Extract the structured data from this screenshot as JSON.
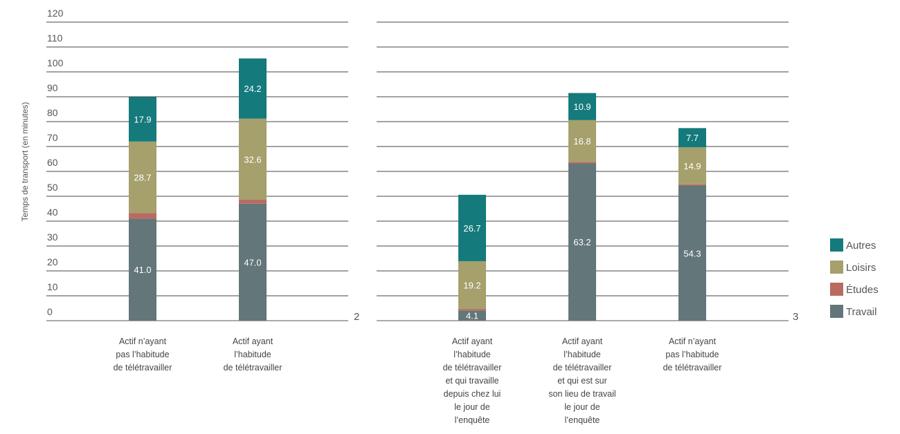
{
  "chart_data": {
    "type": "bar",
    "stacked": true,
    "ylabel": "Temps de transport (en minutes)",
    "ylim": [
      0,
      120
    ],
    "yticks": [
      "0",
      "10",
      "20",
      "30",
      "40",
      "50",
      "60",
      "70",
      "80",
      "90",
      "100",
      "110",
      "120"
    ],
    "grid": true,
    "legend_position": "right",
    "series": [
      {
        "name": "Travail",
        "color": "#637679"
      },
      {
        "name": "Études",
        "color": "#b96b61"
      },
      {
        "name": "Loisirs",
        "color": "#a5a06c"
      },
      {
        "name": "Autres",
        "color": "#157a7c"
      }
    ],
    "legend_order": [
      "Autres",
      "Loisirs",
      "Études",
      "Travail"
    ],
    "panels": [
      {
        "number": "2",
        "bars": [
          {
            "category": [
              "Actif n’ayant",
              "pas l’habitude",
              "de télétravailler"
            ],
            "values": [
              41.0,
              2.3,
              28.7,
              17.9
            ],
            "labels": [
              "41.0",
              "2.3",
              "28.7",
              "17.9"
            ]
          },
          {
            "category": [
              "Actif ayant",
              "l’habitude",
              "de télétravailler"
            ],
            "values": [
              47.0,
              1.6,
              32.6,
              24.2
            ],
            "labels": [
              "47.0",
              "1.6",
              "32.6",
              "24.2"
            ]
          }
        ]
      },
      {
        "number": "3",
        "bars": [
          {
            "category": [
              "Actif ayant",
              "l’habitude",
              "de télétravailler",
              "et qui travaille",
              "depuis chez lui",
              "le jour de",
              "l’enquête"
            ],
            "values": [
              4.1,
              0.6,
              19.2,
              26.7
            ],
            "labels": [
              "4.1",
              "0.6",
              "19.2",
              "26.7"
            ]
          },
          {
            "category": [
              "Actif ayant",
              "l’habitude",
              "de télétravailler",
              "et qui est sur",
              "son lieu de travail",
              "le jour de",
              "l’enquête"
            ],
            "values": [
              63.2,
              0.6,
              16.8,
              10.9
            ],
            "labels": [
              "63.2",
              "0.6",
              "16.8",
              "10.9"
            ]
          },
          {
            "category": [
              "Actif n’ayant",
              "pas l’habitude",
              "de télétravailler"
            ],
            "values": [
              54.3,
              0.5,
              14.9,
              7.7
            ],
            "labels": [
              "54.3",
              "0.5",
              "14.9",
              "7.7"
            ]
          }
        ]
      }
    ]
  }
}
